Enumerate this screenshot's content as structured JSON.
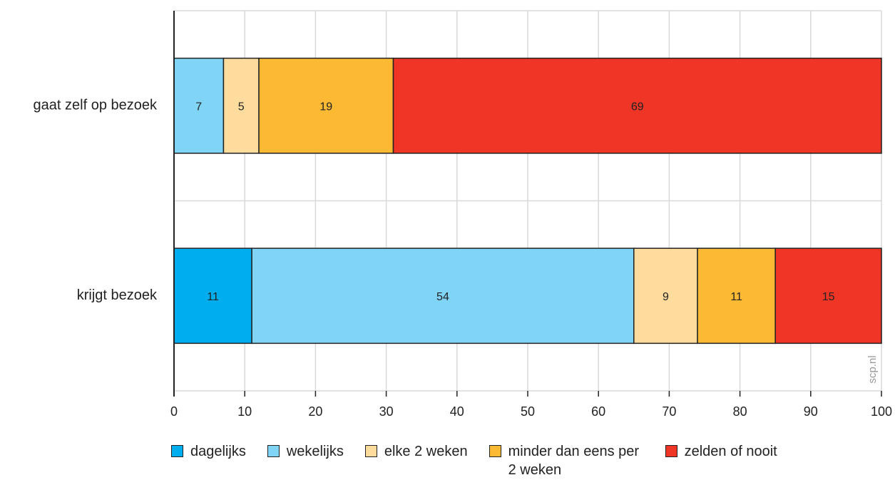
{
  "chart_data": {
    "type": "bar",
    "orientation": "horizontal",
    "stacked": true,
    "categories": [
      "gaat zelf op bezoek",
      "krijgt bezoek"
    ],
    "series": [
      {
        "name": "dagelijks",
        "color": "#00aeef",
        "values": [
          null,
          11
        ]
      },
      {
        "name": "wekelijks",
        "color": "#80d4f6",
        "values": [
          7,
          54
        ]
      },
      {
        "name": "elke 2 weken",
        "color": "#fddc9e",
        "values": [
          5,
          9
        ]
      },
      {
        "name": "minder dan eens per 2 weken",
        "color": "#fbb934",
        "values": [
          19,
          11
        ]
      },
      {
        "name": "zelden of nooit",
        "color": "#ef3526",
        "values": [
          69,
          15
        ]
      }
    ],
    "xlim": [
      0,
      100
    ],
    "xticks": [
      0,
      10,
      20,
      30,
      40,
      50,
      60,
      70,
      80,
      90,
      100
    ],
    "grid": true,
    "legend": "bottom",
    "source": "scp.nl"
  }
}
